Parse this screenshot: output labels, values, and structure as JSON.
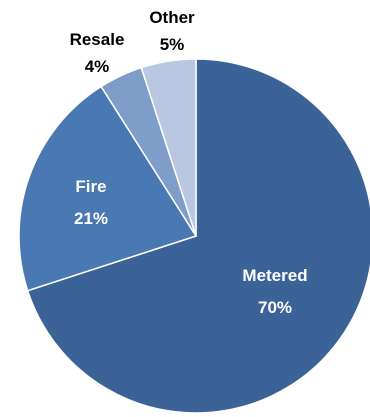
{
  "chart_data": {
    "type": "pie",
    "title": "",
    "slices": [
      {
        "label": "Metered",
        "value": 70,
        "value_label": "70%",
        "color": "#3B6397",
        "text_color": "#FFFFFF",
        "label_placement": "inside"
      },
      {
        "label": "Fire",
        "value": 21,
        "value_label": "21%",
        "color": "#4A78B2",
        "text_color": "#FFFFFF",
        "label_placement": "inside"
      },
      {
        "label": "Resale",
        "value": 4,
        "value_label": "4%",
        "color": "#7F9DC9",
        "text_color": "#000000",
        "label_placement": "outside"
      },
      {
        "label": "Other",
        "value": 5,
        "value_label": "5%",
        "color": "#B9C7E2",
        "text_color": "#000000",
        "label_placement": "outside"
      }
    ],
    "start_angle": "12 o'clock",
    "direction": "clockwise",
    "legend": "none"
  }
}
